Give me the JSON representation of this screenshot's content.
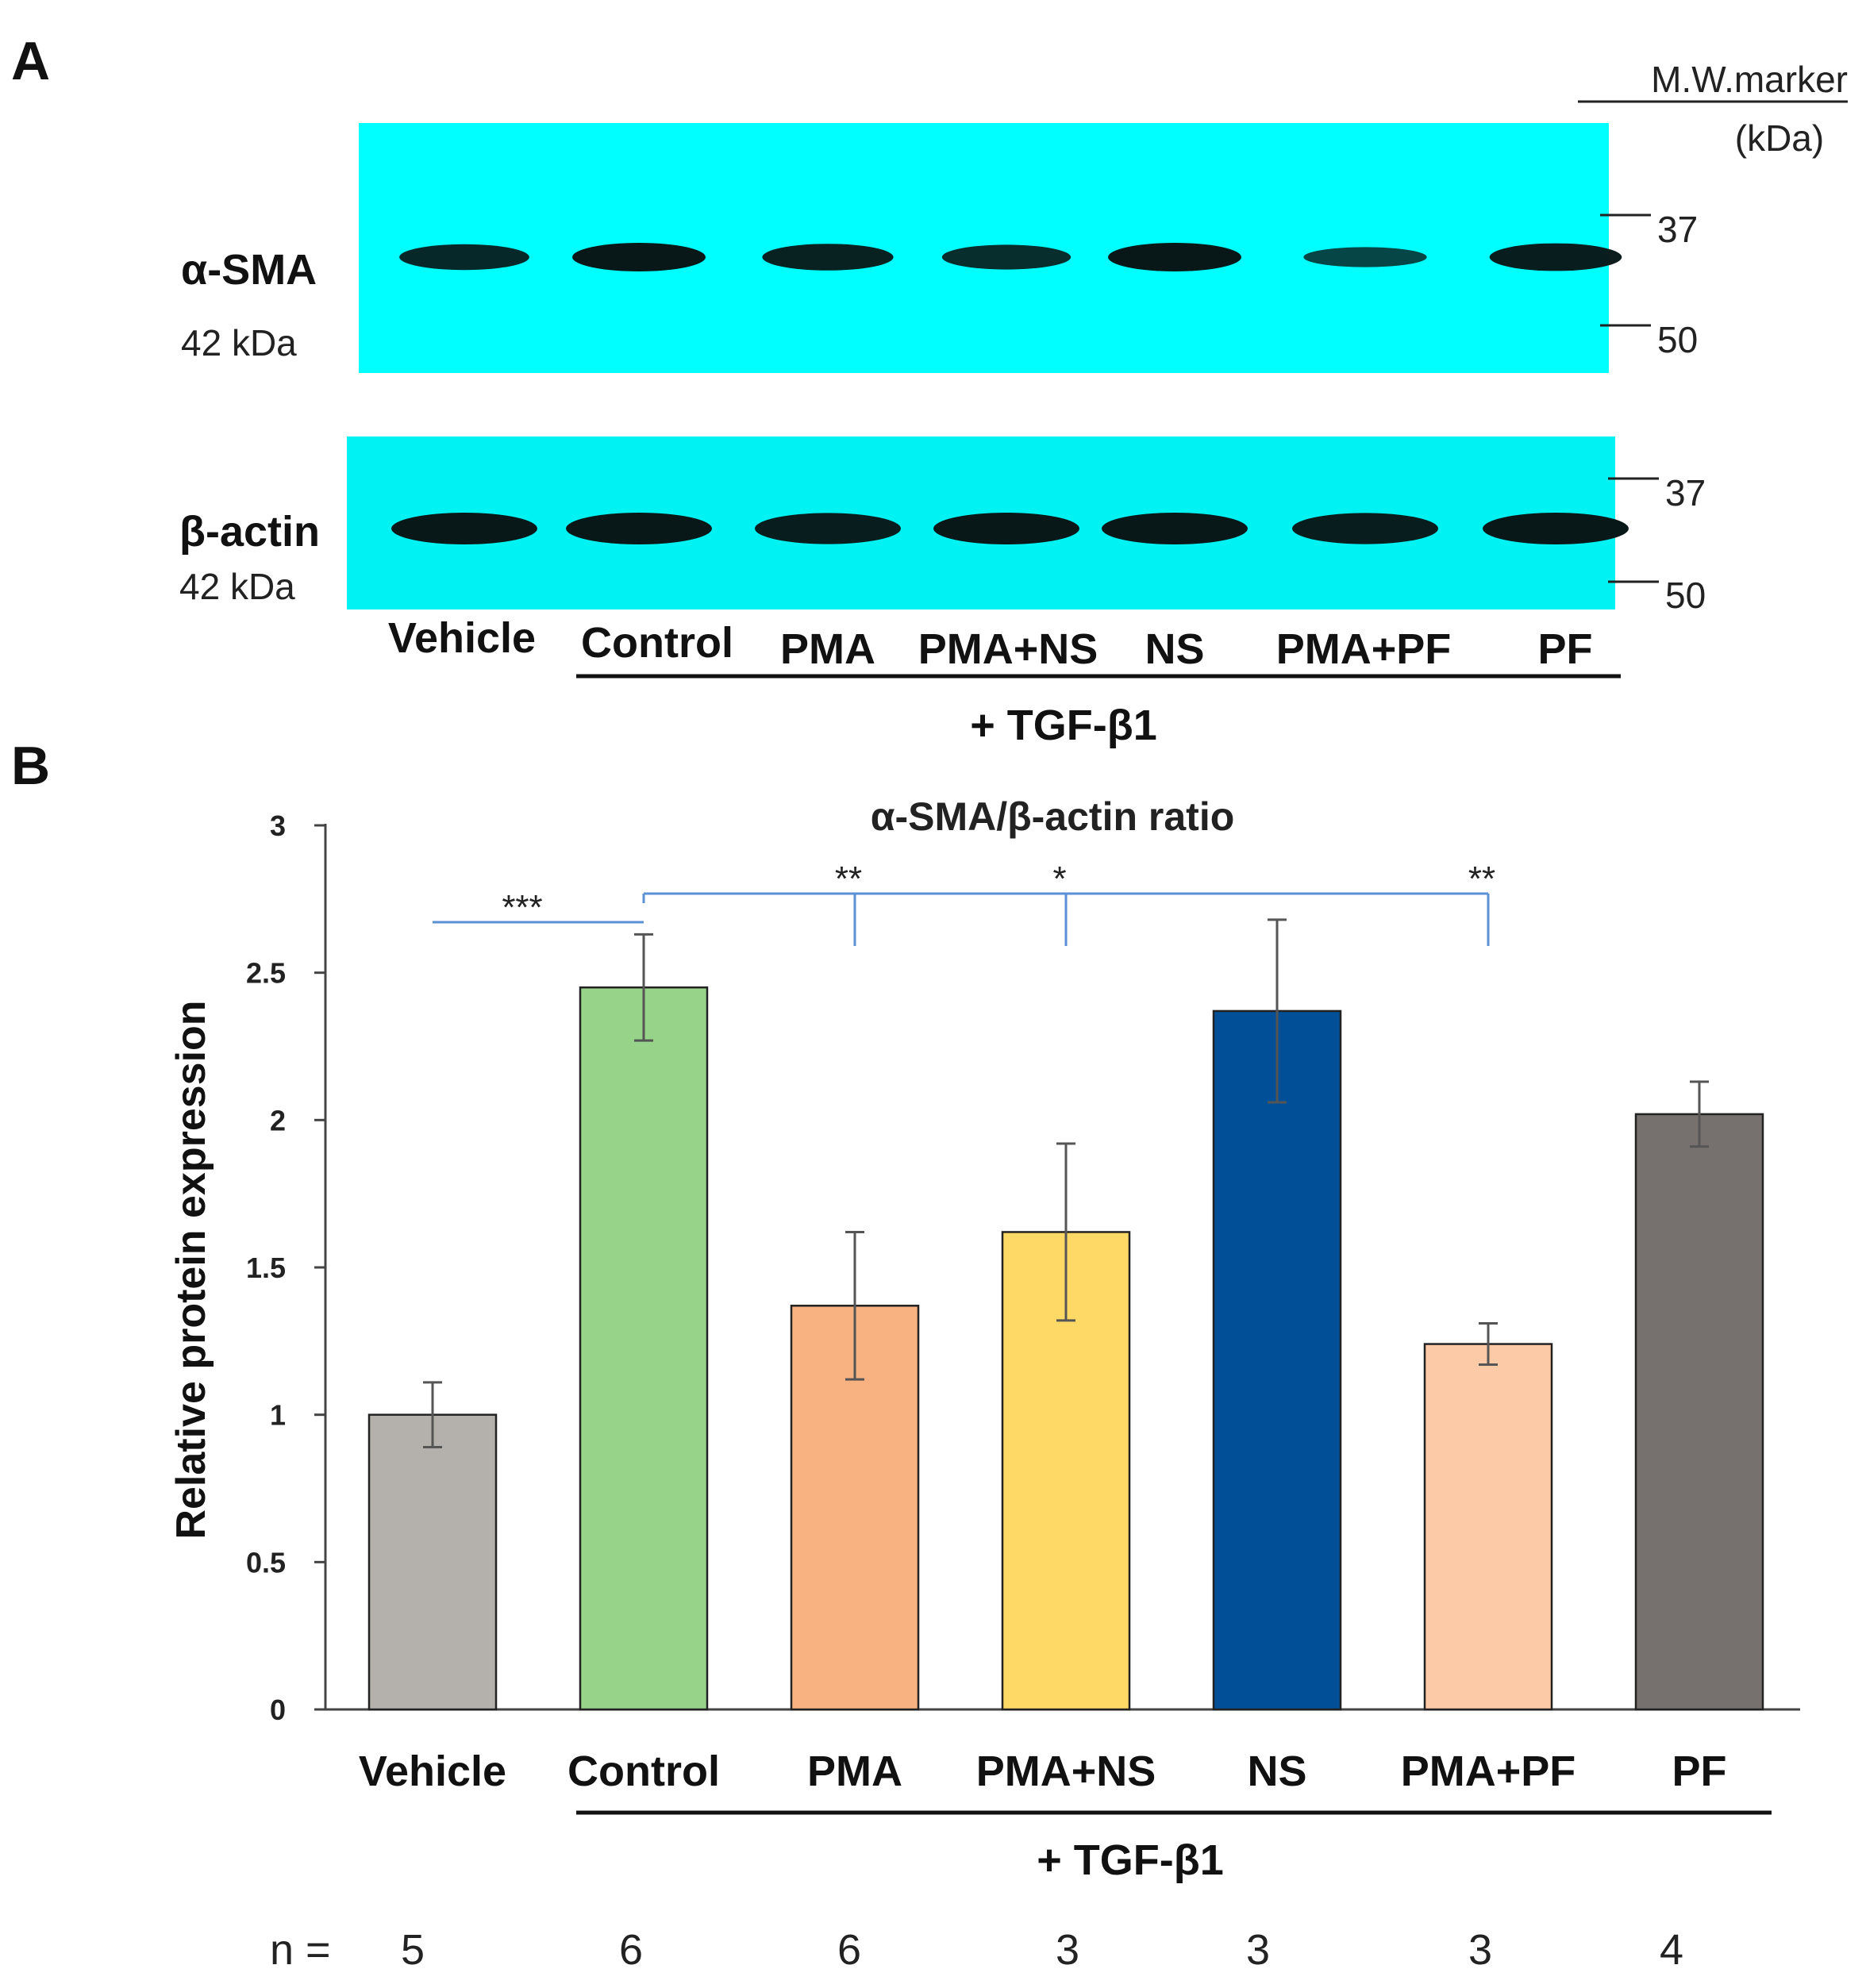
{
  "panel_a": {
    "letter": "A",
    "mw_marker_title": "M.W.marker",
    "mw_marker_unit": "(kDa)",
    "top_blot": {
      "protein": "α-SMA",
      "size": "42 kDa",
      "markers": [
        "37",
        "50"
      ],
      "band_intensity": [
        0.85,
        1.0,
        0.9,
        0.8,
        1.0,
        0.55,
        0.95
      ],
      "color": "#00ffff"
    },
    "bottom_blot": {
      "protein": "β-actin",
      "size": "42 kDa",
      "markers": [
        "37",
        "50"
      ],
      "band_intensity": [
        1.0,
        1.0,
        0.95,
        1.0,
        1.0,
        0.95,
        1.0
      ],
      "color": "#00f2f2"
    },
    "lanes": [
      "Vehicle",
      "Control",
      "PMA",
      "PMA+NS",
      "NS",
      "PMA+PF",
      "PF"
    ],
    "treatment": "+ TGF-β1"
  },
  "panel_b": {
    "letter": "B",
    "treatment": "+ TGF-β1",
    "n_label": "n =",
    "n_values": [
      "5",
      "6",
      "6",
      "3",
      "3",
      "3",
      "4"
    ],
    "significance": [
      {
        "label": "***",
        "from": "Vehicle",
        "to": "Control"
      },
      {
        "label": "**",
        "from": "Control",
        "to": "PMA"
      },
      {
        "label": "*",
        "from": "Control",
        "to": "PMA+NS"
      },
      {
        "label": "**",
        "from": "Control",
        "to": "PMA+PF"
      }
    ]
  },
  "chart_data": {
    "type": "bar",
    "title": "α-SMA/β-actin ratio",
    "xlabel": "",
    "ylabel": "Relative protein expression",
    "categories": [
      "Vehicle",
      "Control",
      "PMA",
      "PMA+NS",
      "NS",
      "PMA+PF",
      "PF"
    ],
    "values": [
      1.0,
      2.45,
      1.37,
      1.62,
      2.37,
      1.24,
      2.02
    ],
    "errors": [
      0.11,
      0.18,
      0.25,
      0.3,
      0.31,
      0.07,
      0.11
    ],
    "colors": [
      "#b4b0ab",
      "#98d38a",
      "#f8b281",
      "#ffd966",
      "#004f97",
      "#fdcaa8",
      "#76716f"
    ],
    "yticks": [
      "0",
      "0.5",
      "1",
      "1.5",
      "2",
      "2.5",
      "3"
    ],
    "ylim": [
      0,
      3
    ],
    "grid": false,
    "significance_color": "#5b8fd6"
  }
}
